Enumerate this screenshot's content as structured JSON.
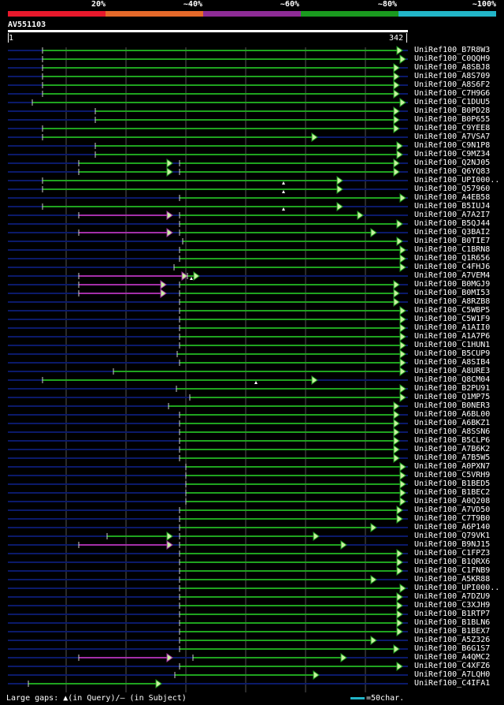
{
  "legend": {
    "labels": [
      "20%",
      "~40%",
      "~60%",
      "~80%",
      "~100%"
    ],
    "colors": [
      "#e8192c",
      "#e5692a",
      "#8e2c96",
      "#1a9a1f",
      "#22b5c8"
    ]
  },
  "query": {
    "name": "AV551103",
    "start": "1",
    "end": "342"
  },
  "colors": {
    "match": "#1fa31f",
    "match_alt": "#a42fa8",
    "gap": "#0b1a6a",
    "arrow": "#c8f0a0",
    "grid": "#555555"
  },
  "hits": [
    {
      "label": "UniRef100_B7R8W3",
      "segs": [
        [
          54,
          505,
          "g"
        ]
      ],
      "marker": null
    },
    {
      "label": "UniRef100_C0QQH9",
      "segs": [
        [
          54,
          509,
          "g"
        ]
      ],
      "marker": null
    },
    {
      "label": "UniRef100_A8SBJ8",
      "segs": [
        [
          54,
          501,
          "g"
        ]
      ],
      "marker": null
    },
    {
      "label": "UniRef100_A8S709",
      "segs": [
        [
          54,
          501,
          "g"
        ]
      ],
      "marker": null
    },
    {
      "label": "UniRef100_A8S6F2",
      "segs": [
        [
          54,
          501,
          "g"
        ]
      ],
      "marker": null
    },
    {
      "label": "UniRef100_C7H9G6",
      "segs": [
        [
          54,
          501,
          "g"
        ]
      ],
      "marker": null
    },
    {
      "label": "UniRef100_C1DUU5",
      "segs": [
        [
          41,
          509,
          "g"
        ]
      ],
      "marker": null
    },
    {
      "label": "UniRef100_B0PD28",
      "segs": [
        [
          121,
          501,
          "g"
        ]
      ],
      "marker": null
    },
    {
      "label": "UniRef100_B0P655",
      "segs": [
        [
          121,
          501,
          "g"
        ]
      ],
      "marker": null
    },
    {
      "label": "UniRef100_C9YEE8",
      "segs": [
        [
          54,
          501,
          "g"
        ]
      ],
      "marker": null
    },
    {
      "label": "UniRef100_A7VSA7",
      "segs": [
        [
          54,
          397,
          "g"
        ]
      ],
      "marker": null
    },
    {
      "label": "UniRef100_C9N1P8",
      "segs": [
        [
          121,
          505,
          "g"
        ]
      ],
      "marker": null
    },
    {
      "label": "UniRef100_C9MZ34",
      "segs": [
        [
          121,
          505,
          "g"
        ]
      ],
      "marker": null
    },
    {
      "label": "UniRef100_Q2NJ05",
      "segs": [
        [
          100,
          213,
          "g"
        ],
        [
          228,
          501,
          "g"
        ]
      ],
      "marker": null
    },
    {
      "label": "UniRef100_Q6YQ83",
      "segs": [
        [
          100,
          213,
          "g"
        ],
        [
          228,
          501,
          "g"
        ]
      ],
      "marker": null
    },
    {
      "label": "UniRef100_UPI000..",
      "segs": [
        [
          54,
          429,
          "g"
        ]
      ],
      "marker": 360
    },
    {
      "label": "UniRef100_Q57960",
      "segs": [
        [
          54,
          429,
          "g"
        ]
      ],
      "marker": 360
    },
    {
      "label": "UniRef100_A4EB58",
      "segs": [
        [
          228,
          509,
          "g"
        ]
      ],
      "marker": null
    },
    {
      "label": "UniRef100_B5IUJ4",
      "segs": [
        [
          54,
          429,
          "g"
        ]
      ],
      "marker": 360
    },
    {
      "label": "UniRef100_A7A2I7",
      "segs": [
        [
          100,
          213,
          "p"
        ],
        [
          228,
          455,
          "g"
        ]
      ],
      "marker": null
    },
    {
      "label": "UniRef100_B5QJ44",
      "segs": [
        [
          228,
          505,
          "g"
        ]
      ],
      "marker": null
    },
    {
      "label": "UniRef100_Q3BAI2",
      "segs": [
        [
          100,
          213,
          "p"
        ],
        [
          228,
          472,
          "g"
        ]
      ],
      "marker": null
    },
    {
      "label": "UniRef100_B0TIE7",
      "segs": [
        [
          232,
          505,
          "g"
        ]
      ],
      "marker": null
    },
    {
      "label": "UniRef100_C1BRN8",
      "segs": [
        [
          228,
          509,
          "g"
        ]
      ],
      "marker": null
    },
    {
      "label": "UniRef100_Q1R656",
      "segs": [
        [
          228,
          509,
          "g"
        ]
      ],
      "marker": null
    },
    {
      "label": "UniRef100_C4FHJ6",
      "segs": [
        [
          221,
          509,
          "g"
        ]
      ],
      "marker": null
    },
    {
      "label": "UniRef100_A7VEM4",
      "segs": [
        [
          100,
          232,
          "p"
        ],
        [
          238,
          247,
          "g"
        ]
      ],
      "marker": 243
    },
    {
      "label": "UniRef100_B0MGJ9",
      "segs": [
        [
          100,
          205,
          "p"
        ],
        [
          228,
          501,
          "g"
        ]
      ],
      "marker": null
    },
    {
      "label": "UniRef100_B0MI53",
      "segs": [
        [
          100,
          205,
          "p"
        ],
        [
          228,
          501,
          "g"
        ]
      ],
      "marker": null
    },
    {
      "label": "UniRef100_A8RZB8",
      "segs": [
        [
          228,
          501,
          "g"
        ]
      ],
      "marker": null
    },
    {
      "label": "UniRef100_C5WBP5",
      "segs": [
        [
          228,
          509,
          "g"
        ]
      ],
      "marker": null
    },
    {
      "label": "UniRef100_C5W1F9",
      "segs": [
        [
          228,
          509,
          "g"
        ]
      ],
      "marker": null
    },
    {
      "label": "UniRef100_A1AII0",
      "segs": [
        [
          228,
          509,
          "g"
        ]
      ],
      "marker": null
    },
    {
      "label": "UniRef100_A1A7P6",
      "segs": [
        [
          228,
          509,
          "g"
        ]
      ],
      "marker": null
    },
    {
      "label": "UniRef100_C1HUN1",
      "segs": [
        [
          228,
          509,
          "g"
        ]
      ],
      "marker": null
    },
    {
      "label": "UniRef100_B5CUP9",
      "segs": [
        [
          225,
          509,
          "g"
        ]
      ],
      "marker": null
    },
    {
      "label": "UniRef100_A8SIB4",
      "segs": [
        [
          228,
          509,
          "g"
        ]
      ],
      "marker": null
    },
    {
      "label": "UniRef100_A8URE3",
      "segs": [
        [
          144,
          509,
          "g"
        ]
      ],
      "marker": null
    },
    {
      "label": "UniRef100_Q8CM04",
      "segs": [
        [
          54,
          397,
          "g"
        ]
      ],
      "marker": 325
    },
    {
      "label": "UniRef100_B2PU91",
      "segs": [
        [
          224,
          509,
          "g"
        ]
      ],
      "marker": null
    },
    {
      "label": "UniRef100_Q1MP75",
      "segs": [
        [
          241,
          509,
          "g"
        ]
      ],
      "marker": null
    },
    {
      "label": "UniRef100_B0NER3",
      "segs": [
        [
          214,
          501,
          "g"
        ]
      ],
      "marker": null
    },
    {
      "label": "UniRef100_A6BL00",
      "segs": [
        [
          228,
          501,
          "g"
        ]
      ],
      "marker": null
    },
    {
      "label": "UniRef100_A6BKZ1",
      "segs": [
        [
          228,
          501,
          "g"
        ]
      ],
      "marker": null
    },
    {
      "label": "UniRef100_A8SSN6",
      "segs": [
        [
          228,
          501,
          "g"
        ]
      ],
      "marker": null
    },
    {
      "label": "UniRef100_B5CLP6",
      "segs": [
        [
          228,
          501,
          "g"
        ]
      ],
      "marker": null
    },
    {
      "label": "UniRef100_A7B6K2",
      "segs": [
        [
          228,
          501,
          "g"
        ]
      ],
      "marker": null
    },
    {
      "label": "UniRef100_A7B5W5",
      "segs": [
        [
          228,
          501,
          "g"
        ]
      ],
      "marker": null
    },
    {
      "label": "UniRef100_A0PXN7",
      "segs": [
        [
          236,
          509,
          "g"
        ]
      ],
      "marker": null
    },
    {
      "label": "UniRef100_C5VRH9",
      "segs": [
        [
          236,
          509,
          "g"
        ]
      ],
      "marker": null
    },
    {
      "label": "UniRef100_B1BED5",
      "segs": [
        [
          236,
          509,
          "g"
        ]
      ],
      "marker": null
    },
    {
      "label": "UniRef100_B1BEC2",
      "segs": [
        [
          236,
          509,
          "g"
        ]
      ],
      "marker": null
    },
    {
      "label": "UniRef100_A0Q208",
      "segs": [
        [
          236,
          509,
          "g"
        ]
      ],
      "marker": null
    },
    {
      "label": "UniRef100_A7VD50",
      "segs": [
        [
          228,
          505,
          "g"
        ]
      ],
      "marker": null
    },
    {
      "label": "UniRef100_C7T9B0",
      "segs": [
        [
          228,
          505,
          "g"
        ]
      ],
      "marker": null
    },
    {
      "label": "UniRef100_A6P140",
      "segs": [
        [
          228,
          472,
          "g"
        ]
      ],
      "marker": null
    },
    {
      "label": "UniRef100_Q79VK1",
      "segs": [
        [
          136,
          213,
          "g"
        ],
        [
          228,
          399,
          "g"
        ]
      ],
      "marker": null
    },
    {
      "label": "UniRef100_B9NJ15",
      "segs": [
        [
          100,
          213,
          "p"
        ],
        [
          228,
          434,
          "g"
        ]
      ],
      "marker": null
    },
    {
      "label": "UniRef100_C1FPZ3",
      "segs": [
        [
          228,
          505,
          "g"
        ]
      ],
      "marker": null
    },
    {
      "label": "UniRef100_B1QRX6",
      "segs": [
        [
          228,
          505,
          "g"
        ]
      ],
      "marker": null
    },
    {
      "label": "UniRef100_C1FNB9",
      "segs": [
        [
          228,
          505,
          "g"
        ]
      ],
      "marker": null
    },
    {
      "label": "UniRef100_A5KR88",
      "segs": [
        [
          228,
          472,
          "g"
        ]
      ],
      "marker": null
    },
    {
      "label": "UniRef100_UPI000..",
      "segs": [
        [
          228,
          509,
          "g"
        ]
      ],
      "marker": null
    },
    {
      "label": "UniRef100_A7DZU9",
      "segs": [
        [
          228,
          505,
          "g"
        ]
      ],
      "marker": null
    },
    {
      "label": "UniRef100_C3XJH9",
      "segs": [
        [
          228,
          505,
          "g"
        ]
      ],
      "marker": null
    },
    {
      "label": "UniRef100_B1RTP7",
      "segs": [
        [
          228,
          505,
          "g"
        ]
      ],
      "marker": null
    },
    {
      "label": "UniRef100_B1BLN6",
      "segs": [
        [
          228,
          505,
          "g"
        ]
      ],
      "marker": null
    },
    {
      "label": "UniRef100_B1BEX7",
      "segs": [
        [
          228,
          505,
          "g"
        ]
      ],
      "marker": null
    },
    {
      "label": "UniRef100_A5Z326",
      "segs": [
        [
          228,
          472,
          "g"
        ]
      ],
      "marker": null
    },
    {
      "label": "UniRef100_B6G1S7",
      "segs": [
        [
          228,
          501,
          "g"
        ]
      ],
      "marker": null
    },
    {
      "label": "UniRef100_A4QMC2",
      "segs": [
        [
          100,
          213,
          "p"
        ],
        [
          245,
          434,
          "g"
        ]
      ],
      "marker": null
    },
    {
      "label": "UniRef100_C4XFZ6",
      "segs": [
        [
          228,
          505,
          "g"
        ]
      ],
      "marker": null
    },
    {
      "label": "UniRef100_A7LQH0",
      "segs": [
        [
          222,
          399,
          "g"
        ]
      ],
      "marker": null
    },
    {
      "label": "UniRef100_C4IFA1",
      "segs": [
        [
          36,
          199,
          "g"
        ]
      ],
      "marker": null
    }
  ],
  "footer": {
    "gaps_text": "Large gaps: ▲(in Query)/— (in Subject)",
    "scale_text": "=50char."
  }
}
